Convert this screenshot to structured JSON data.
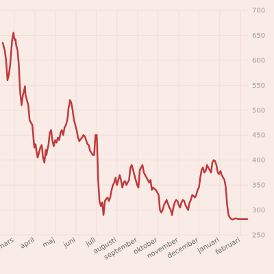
{
  "chart_data": {
    "type": "line",
    "title": "",
    "xlabel": "",
    "ylabel": "",
    "ylim": [
      250,
      700
    ],
    "yticks": [
      250,
      300,
      350,
      400,
      450,
      500,
      550,
      600,
      650,
      700
    ],
    "y_axis_position": "right",
    "grid": true,
    "x_tick_labels": [
      "mars",
      "april",
      "maj",
      "juni",
      "juli",
      "augusti",
      "september",
      "oktober",
      "november",
      "december",
      "januari",
      "februari"
    ],
    "x_range": [
      0,
      365
    ],
    "x_tick_positions": [
      17,
      48,
      78,
      109,
      139,
      170,
      201,
      231,
      262,
      292,
      323,
      354
    ],
    "series": [
      {
        "color": "#c0393b",
        "x": [
          0,
          3,
          5,
          7,
          9,
          11,
          13,
          14,
          16,
          17,
          18,
          19,
          20,
          22,
          24,
          25,
          26,
          28,
          30,
          32,
          33,
          34,
          36,
          38,
          40,
          42,
          44,
          46,
          47,
          48,
          49,
          50,
          52,
          54,
          56,
          58,
          60,
          62,
          64,
          65,
          66,
          68,
          70,
          72,
          74,
          76,
          78,
          80,
          82,
          84,
          86,
          88,
          90,
          92,
          94,
          96,
          97,
          98,
          99,
          100,
          102,
          104,
          106,
          108,
          110,
          112,
          114,
          116,
          118,
          120,
          122,
          124,
          126,
          128,
          130,
          132,
          134,
          136,
          138,
          140,
          142,
          144,
          146,
          148,
          150,
          152,
          154,
          156,
          158,
          160,
          162,
          164,
          166,
          167,
          168,
          169,
          170,
          172,
          174,
          176,
          178,
          179,
          180,
          182,
          184,
          186,
          188,
          190,
          192,
          194,
          196,
          198,
          200,
          202,
          204,
          206,
          208,
          210,
          212,
          214,
          216,
          218,
          220,
          222,
          224,
          226,
          228,
          230,
          232,
          234,
          236,
          238,
          240,
          242,
          244,
          246,
          248,
          250,
          252,
          254,
          256,
          258,
          260,
          262,
          264,
          266,
          268,
          270,
          272,
          274,
          276,
          278,
          280,
          282,
          284,
          286,
          288,
          290,
          292,
          294,
          296,
          298,
          300,
          302,
          304,
          306,
          308,
          310,
          312,
          314,
          316,
          318,
          320,
          322,
          324,
          326,
          328,
          330,
          332,
          334,
          336,
          338,
          340,
          342,
          344,
          346,
          348,
          350,
          352,
          354,
          356,
          358,
          360,
          362,
          364
        ],
        "y": [
          635,
          620,
          600,
          560,
          570,
          590,
          625,
          640,
          655,
          645,
          640,
          642,
          630,
          620,
          590,
          560,
          535,
          510,
          530,
          540,
          548,
          530,
          520,
          510,
          480,
          475,
          470,
          440,
          425,
          432,
          431,
          420,
          405,
          415,
          425,
          430,
          405,
          395,
          420,
          410,
          418,
          430,
          455,
          460,
          438,
          428,
          440,
          435,
          445,
          440,
          455,
          460,
          450,
          465,
          470,
          480,
          490,
          505,
          510,
          520,
          515,
          500,
          480,
          470,
          460,
          445,
          438,
          442,
          445,
          450,
          448,
          440,
          432,
          430,
          418,
          415,
          410,
          410,
          450,
          450,
          360,
          318,
          308,
          315,
          290,
          318,
          322,
          325,
          318,
          325,
          340,
          350,
          355,
          360,
          365,
          355,
          350,
          360,
          370,
          360,
          345,
          350,
          355,
          358,
          350,
          355,
          360,
          385,
          390,
          380,
          370,
          360,
          350,
          345,
          380,
          385,
          390,
          375,
          370,
          365,
          360,
          355,
          360,
          340,
          345,
          342,
          340,
          335,
          330,
          300,
          295,
          300,
          310,
          315,
          320,
          312,
          305,
          300,
          290,
          305,
          315,
          320,
          318,
          310,
          305,
          315,
          320,
          318,
          310,
          305,
          300,
          315,
          320,
          330,
          328,
          325,
          330,
          340,
          345,
          365,
          380,
          385,
          375,
          378,
          390,
          385,
          380,
          375,
          395,
          400,
          398,
          390,
          375,
          372,
          378,
          370,
          365,
          360,
          345,
          310,
          290,
          285,
          282,
          281,
          282,
          283,
          283,
          282,
          282,
          282,
          282,
          282,
          282,
          282,
          282
        ]
      }
    ]
  }
}
